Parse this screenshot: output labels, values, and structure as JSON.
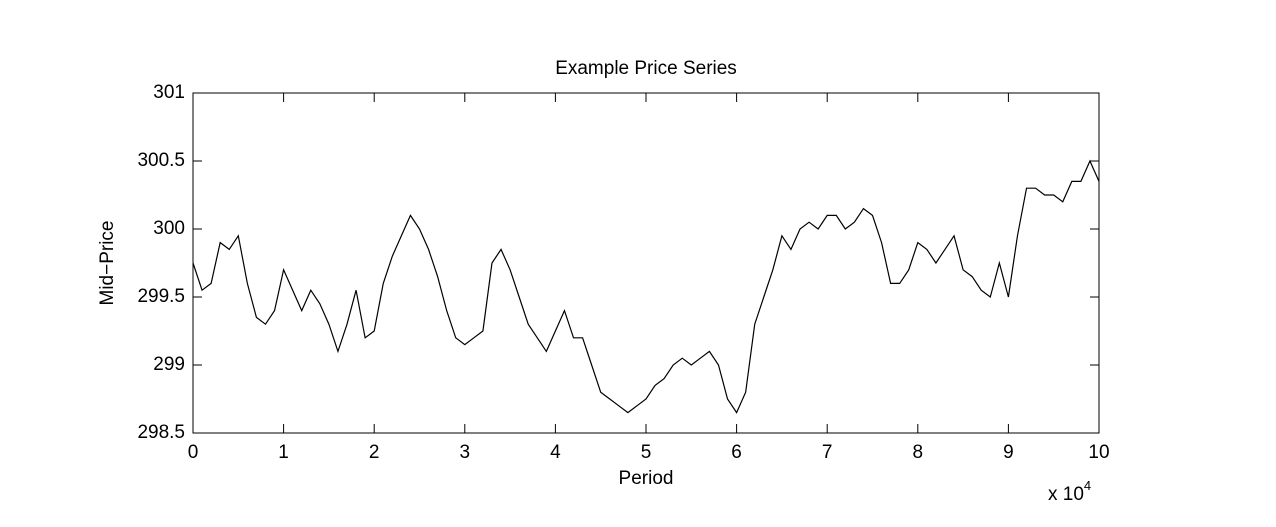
{
  "chart_data": {
    "type": "line",
    "title": "Example Price Series",
    "x_label": "Period",
    "y_label": "Mid−Price",
    "x_scale_label": {
      "base": "x 10",
      "exponent": "4"
    },
    "xlim": [
      0,
      100000
    ],
    "ylim": [
      298.5,
      301
    ],
    "xticks": [
      {
        "value": 0,
        "label": "0"
      },
      {
        "value": 10000,
        "label": "1"
      },
      {
        "value": 20000,
        "label": "2"
      },
      {
        "value": 30000,
        "label": "3"
      },
      {
        "value": 40000,
        "label": "4"
      },
      {
        "value": 50000,
        "label": "5"
      },
      {
        "value": 60000,
        "label": "6"
      },
      {
        "value": 70000,
        "label": "7"
      },
      {
        "value": 80000,
        "label": "8"
      },
      {
        "value": 90000,
        "label": "9"
      },
      {
        "value": 100000,
        "label": "10"
      }
    ],
    "yticks": [
      298.5,
      299,
      299.5,
      300,
      300.5,
      301
    ],
    "grid": false,
    "x": [
      0,
      1000,
      2000,
      3000,
      4000,
      5000,
      6000,
      7000,
      8000,
      9000,
      10000,
      11000,
      12000,
      13000,
      14000,
      15000,
      16000,
      17000,
      18000,
      19000,
      20000,
      21000,
      22000,
      23000,
      24000,
      25000,
      26000,
      27000,
      28000,
      29000,
      30000,
      31000,
      32000,
      33000,
      34000,
      35000,
      36000,
      37000,
      38000,
      39000,
      40000,
      41000,
      42000,
      43000,
      44000,
      45000,
      46000,
      47000,
      48000,
      49000,
      50000,
      51000,
      52000,
      53000,
      54000,
      55000,
      56000,
      57000,
      58000,
      59000,
      60000,
      61000,
      62000,
      63000,
      64000,
      65000,
      66000,
      67000,
      68000,
      69000,
      70000,
      71000,
      72000,
      73000,
      74000,
      75000,
      76000,
      77000,
      78000,
      79000,
      80000,
      81000,
      82000,
      83000,
      84000,
      85000,
      86000,
      87000,
      88000,
      89000,
      90000,
      91000,
      92000,
      93000,
      94000,
      95000,
      96000,
      97000,
      98000,
      99000,
      100000
    ],
    "series": [
      {
        "name": "Mid-Price",
        "color": "#000000",
        "values": [
          299.75,
          299.55,
          299.6,
          299.9,
          299.85,
          299.95,
          299.6,
          299.35,
          299.3,
          299.4,
          299.7,
          299.55,
          299.4,
          299.55,
          299.45,
          299.3,
          299.1,
          299.3,
          299.55,
          299.2,
          299.25,
          299.6,
          299.8,
          299.95,
          300.1,
          300.0,
          299.85,
          299.65,
          299.4,
          299.2,
          299.15,
          299.2,
          299.25,
          299.75,
          299.85,
          299.7,
          299.5,
          299.3,
          299.2,
          299.1,
          299.25,
          299.4,
          299.2,
          299.2,
          299.0,
          298.8,
          298.75,
          298.7,
          298.65,
          298.7,
          298.75,
          298.85,
          298.9,
          299.0,
          299.05,
          299.0,
          299.05,
          299.1,
          299.0,
          298.75,
          298.65,
          298.8,
          299.3,
          299.5,
          299.7,
          299.95,
          299.85,
          300.0,
          300.05,
          300.0,
          300.1,
          300.1,
          300.0,
          300.05,
          300.15,
          300.1,
          299.9,
          299.6,
          299.6,
          299.7,
          299.9,
          299.85,
          299.75,
          299.85,
          299.95,
          299.7,
          299.65,
          299.55,
          299.5,
          299.75,
          299.5,
          299.95,
          300.3,
          300.3,
          300.25,
          300.25,
          300.2,
          300.35,
          300.35,
          300.5,
          300.35
        ]
      }
    ]
  }
}
